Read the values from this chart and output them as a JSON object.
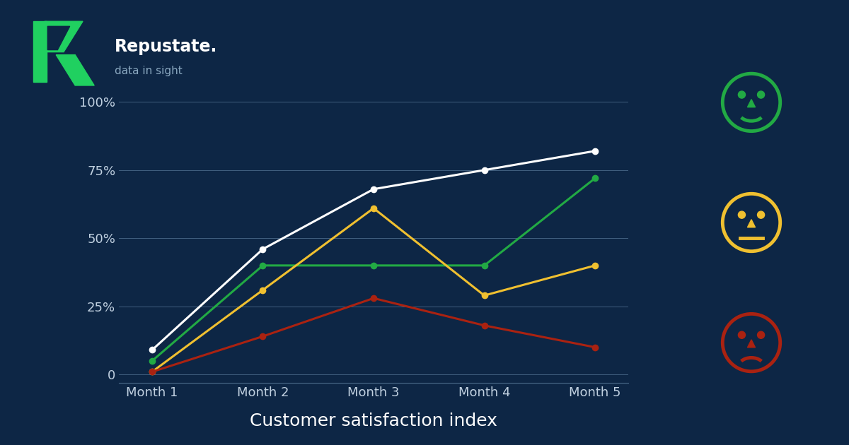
{
  "background_color": "#0d2645",
  "title": "Customer satisfaction index",
  "title_color": "#ffffff",
  "title_fontsize": 18,
  "months": [
    "Month 1",
    "Month 2",
    "Month 3",
    "Month 4",
    "Month 5"
  ],
  "lines": {
    "white": [
      9,
      46,
      68,
      75,
      82
    ],
    "green": [
      5,
      40,
      40,
      40,
      72
    ],
    "yellow": [
      1,
      31,
      61,
      29,
      40
    ],
    "red": [
      1,
      14,
      28,
      18,
      10
    ]
  },
  "line_colors": {
    "white": "#ffffff",
    "green": "#22aa44",
    "yellow": "#f0c030",
    "red": "#aa2211"
  },
  "line_width": 2.2,
  "marker_size": 6,
  "grid_color": "#4a6a8a",
  "tick_color": "#c0d0e0",
  "tick_fontsize": 13,
  "yticks": [
    0,
    25,
    50,
    75,
    100
  ],
  "ylim": [
    -3,
    108
  ],
  "face_colors": {
    "happy": "#22aa44",
    "neutral": "#f0c030",
    "sad": "#aa2211"
  },
  "logo_text": "Repustate.",
  "logo_sub": "data in sight",
  "r_color": "#20d060"
}
